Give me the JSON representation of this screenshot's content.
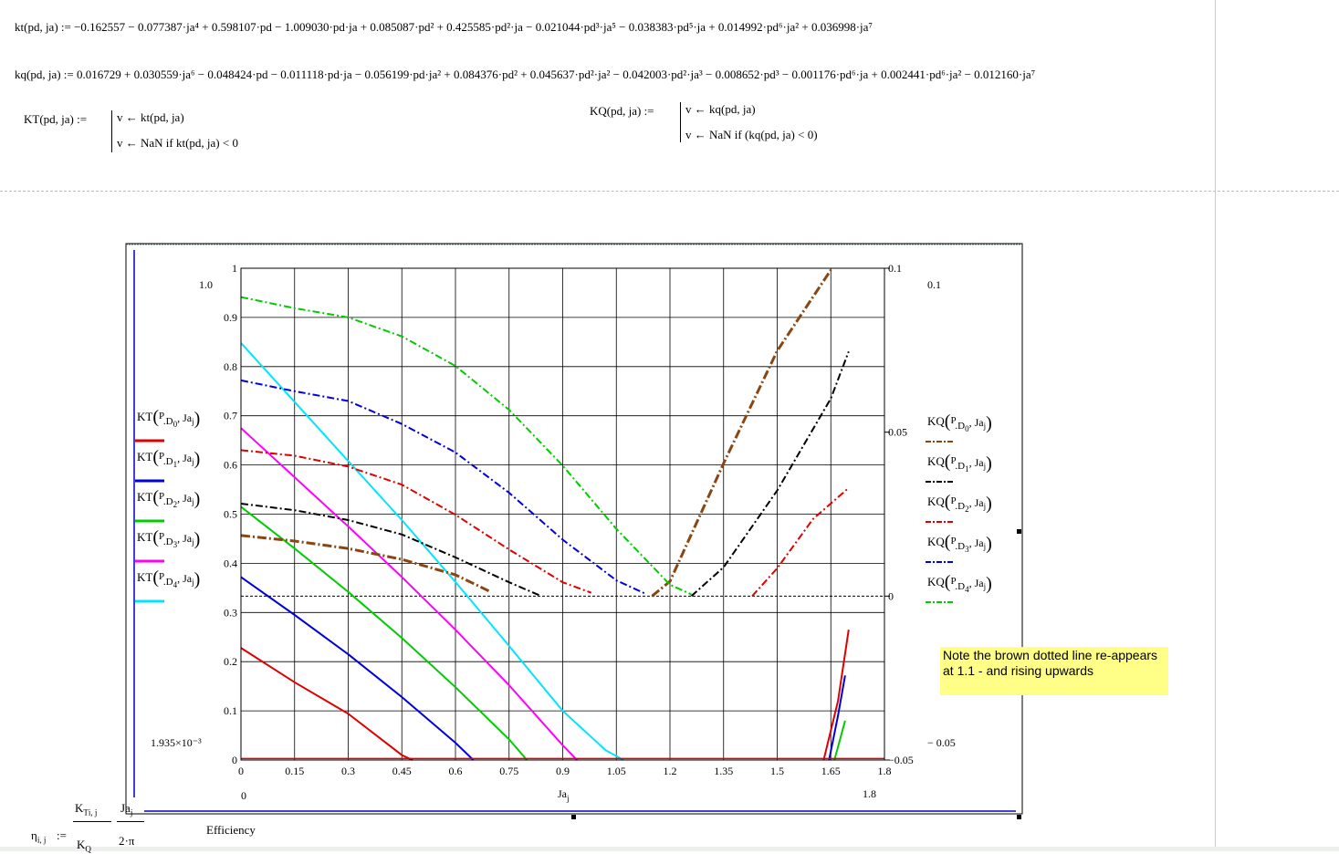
{
  "equations": {
    "kt": "kt(pd, ja) := −0.162557 − 0.077387·ja⁴ + 0.598107·pd − 1.009030·pd·ja + 0.085087·pd² + 0.425585·pd²·ja − 0.021044·pd³·ja⁵ − 0.038383·pd⁵·ja + 0.014992·pd⁶·ja² + 0.036998·ja⁷",
    "kq": "kq(pd, ja) := 0.016729 + 0.030559·ja⁶ − 0.048424·pd − 0.011118·pd·ja − 0.056199·pd·ja² + 0.084376·pd² + 0.045637·pd²·ja² − 0.042003·pd²·ja³ − 0.008652·pd³ − 0.001176·pd⁶·ja + 0.002441·pd⁶·ja² − 0.012160·ja⁷"
  },
  "programs": {
    "KT": {
      "name": "KT(pd, ja) :=",
      "line1": "v ← kt(pd, ja)",
      "line2": "v ← NaN  if  kt(pd, ja) < 0"
    },
    "KQ": {
      "name": "KQ(pd, ja) :=",
      "line1": "v ← kq(pd, ja)",
      "line2": "v ← NaN  if  (kq(pd, ja) < 0)"
    }
  },
  "note": "Note the brown dotted line re-appears at 1.1 - and rising upwards",
  "efficiency": {
    "lhs": "η",
    "lhs_sub": "i, j",
    "assign": ":=",
    "num1": "K",
    "num1_sub": "T",
    "num1_sub2": "i, j",
    "den1": "K",
    "den1_sub": "Q",
    "num2": "Ja",
    "num2_sub": "j",
    "den2": "2·π",
    "label": "Efficiency"
  },
  "chart_data": {
    "type": "line",
    "x_label": "Ja",
    "x_label_sub": "j",
    "x_ticks": [
      "0",
      "0.15",
      "0.3",
      "0.45",
      "0.6",
      "0.75",
      "0.9",
      "1.05",
      "1.2",
      "1.35",
      "1.5",
      "1.65",
      "1.8"
    ],
    "xlim": [
      0,
      1.8
    ],
    "x_range_labels": {
      "min": "0",
      "max": "1.8"
    },
    "y_left_ticks": [
      "0",
      "0.1",
      "0.2",
      "0.3",
      "0.4",
      "0.5",
      "0.6",
      "0.7",
      "0.8",
      "0.9",
      "1"
    ],
    "ylim_left": [
      0,
      1
    ],
    "y_left_range_labels": {
      "max": "1.0",
      "min": "1.935×10⁻³"
    },
    "y_right_ticks": [
      "−0.05",
      "0",
      "0.05",
      "0.1"
    ],
    "ylim_right": [
      -0.05,
      0.1
    ],
    "y_right_range_labels": {
      "max": "0.1",
      "mid": "0.05",
      "min": "− 0.05"
    },
    "grid": true,
    "left_legend": [
      {
        "text": "KT(P.D0, Jaj)",
        "func": "KT",
        "sub": "0",
        "color": "#e00000",
        "style": "solid"
      },
      {
        "text": "KT(P.D1, Jaj)",
        "func": "KT",
        "sub": "1",
        "color": "#0000dd",
        "style": "solid"
      },
      {
        "text": "KT(P.D2, Jaj)",
        "func": "KT",
        "sub": "2",
        "color": "#00cc00",
        "style": "solid"
      },
      {
        "text": "KT(P.D3, Jaj)",
        "func": "KT",
        "sub": "3",
        "color": "#ff00ff",
        "style": "solid"
      },
      {
        "text": "KT(P.D4, Jaj)",
        "func": "KT",
        "sub": "4",
        "color": "#00e5ff",
        "style": "solid"
      }
    ],
    "right_legend": [
      {
        "text": "KQ(P.D0, Jaj)",
        "func": "KQ",
        "sub": "0",
        "color": "#8b4513",
        "style": "dashdot"
      },
      {
        "text": "KQ(P.D1, Jaj)",
        "func": "KQ",
        "sub": "1",
        "color": "#000000",
        "style": "dashdot"
      },
      {
        "text": "KQ(P.D2, Jaj)",
        "func": "KQ",
        "sub": "2",
        "color": "#e00000",
        "style": "dashdot"
      },
      {
        "text": "KQ(P.D3, Jaj)",
        "func": "KQ",
        "sub": "3",
        "color": "#0000dd",
        "style": "dashdot"
      },
      {
        "text": "KQ(P.D4, Jaj)",
        "func": "KQ",
        "sub": "4",
        "color": "#00cc00",
        "style": "dashdot"
      }
    ],
    "series_left": [
      {
        "color": "#e00000",
        "width": 2,
        "segments": [
          [
            [
              0,
              0.228
            ],
            [
              0.15,
              0.158
            ],
            [
              0.3,
              0.094
            ],
            [
              0.45,
              0.01
            ],
            [
              0.48,
              0
            ]
          ],
          [
            [
              1.63,
              0
            ],
            [
              1.67,
              0.12
            ],
            [
              1.7,
              0.265
            ]
          ]
        ]
      },
      {
        "color": "#0000dd",
        "width": 2,
        "segments": [
          [
            [
              0,
              0.372
            ],
            [
              0.15,
              0.295
            ],
            [
              0.3,
              0.215
            ],
            [
              0.45,
              0.128
            ],
            [
              0.6,
              0.035
            ],
            [
              0.65,
              0
            ]
          ],
          [
            [
              1.645,
              0
            ],
            [
              1.67,
              0.09
            ],
            [
              1.69,
              0.172
            ]
          ]
        ]
      },
      {
        "color": "#00cc00",
        "width": 2,
        "segments": [
          [
            [
              0,
              0.515
            ],
            [
              0.15,
              0.43
            ],
            [
              0.3,
              0.342
            ],
            [
              0.45,
              0.248
            ],
            [
              0.6,
              0.148
            ],
            [
              0.75,
              0.042
            ],
            [
              0.8,
              0
            ]
          ],
          [
            [
              1.66,
              0
            ],
            [
              1.69,
              0.08
            ]
          ]
        ]
      },
      {
        "color": "#ff00ff",
        "width": 2,
        "segments": [
          [
            [
              0,
              0.675
            ],
            [
              0.15,
              0.575
            ],
            [
              0.3,
              0.475
            ],
            [
              0.45,
              0.372
            ],
            [
              0.6,
              0.265
            ],
            [
              0.75,
              0.152
            ],
            [
              0.9,
              0.03
            ],
            [
              0.94,
              0
            ]
          ]
        ]
      },
      {
        "color": "#00e5ff",
        "width": 2,
        "segments": [
          [
            [
              0,
              0.848
            ],
            [
              0.15,
              0.728
            ],
            [
              0.3,
              0.608
            ],
            [
              0.45,
              0.488
            ],
            [
              0.6,
              0.362
            ],
            [
              0.75,
              0.232
            ],
            [
              0.9,
              0.1
            ],
            [
              1.02,
              0.02
            ],
            [
              1.07,
              0
            ]
          ]
        ]
      },
      {
        "color": "#e00000",
        "width": 1.5,
        "segments": [
          [
            [
              0,
              0.003
            ],
            [
              1.8,
              0.003
            ]
          ]
        ]
      }
    ],
    "series_right": [
      {
        "color": "#8b4513",
        "width": 3,
        "dash": "10,3,2,3",
        "segments": [
          [
            [
              0,
              0.0185
            ],
            [
              0.15,
              0.0168
            ],
            [
              0.3,
              0.0145
            ],
            [
              0.45,
              0.0112
            ],
            [
              0.6,
              0.0065
            ],
            [
              0.7,
              0.0012
            ]
          ],
          [
            [
              1.15,
              0
            ],
            [
              1.2,
              0.0045
            ],
            [
              1.35,
              0.0405
            ],
            [
              1.5,
              0.0748
            ],
            [
              1.65,
              0.0995
            ]
          ]
        ]
      },
      {
        "color": "#000000",
        "width": 2,
        "dash": "8,3,2,3",
        "segments": [
          [
            [
              0,
              0.0282
            ],
            [
              0.15,
              0.0262
            ],
            [
              0.3,
              0.0232
            ],
            [
              0.45,
              0.0188
            ],
            [
              0.6,
              0.0118
            ],
            [
              0.75,
              0.0042
            ],
            [
              0.84,
              0
            ]
          ],
          [
            [
              1.26,
              0
            ],
            [
              1.35,
              0.0088
            ],
            [
              1.5,
              0.0322
            ],
            [
              1.65,
              0.0603
            ],
            [
              1.7,
              0.0746
            ]
          ]
        ]
      },
      {
        "color": "#e00000",
        "width": 2,
        "dash": "8,3,2,3",
        "segments": [
          [
            [
              0,
              0.0445
            ],
            [
              0.15,
              0.0428
            ],
            [
              0.3,
              0.0395
            ],
            [
              0.45,
              0.034
            ],
            [
              0.6,
              0.0248
            ],
            [
              0.75,
              0.0142
            ],
            [
              0.9,
              0.0042
            ],
            [
              0.98,
              0.001
            ]
          ],
          [
            [
              1.43,
              0
            ],
            [
              1.5,
              0.0085
            ],
            [
              1.6,
              0.0235
            ],
            [
              1.7,
              0.033
            ]
          ]
        ]
      },
      {
        "color": "#0000dd",
        "width": 2,
        "dash": "8,3,2,3",
        "segments": [
          [
            [
              0,
              0.0658
            ],
            [
              0.15,
              0.0625
            ],
            [
              0.3,
              0.0595
            ],
            [
              0.45,
              0.0525
            ],
            [
              0.6,
              0.0438
            ],
            [
              0.75,
              0.0315
            ],
            [
              0.9,
              0.0172
            ],
            [
              1.05,
              0.0048
            ],
            [
              1.13,
              0.0008
            ]
          ]
        ]
      },
      {
        "color": "#00cc00",
        "width": 2,
        "dash": "8,3,2,3",
        "segments": [
          [
            [
              0,
              0.0912
            ],
            [
              0.15,
              0.0878
            ],
            [
              0.3,
              0.085
            ],
            [
              0.45,
              0.0792
            ],
            [
              0.6,
              0.0702
            ],
            [
              0.75,
              0.0568
            ],
            [
              0.9,
              0.0398
            ],
            [
              1.05,
              0.0205
            ],
            [
              1.2,
              0.0035
            ],
            [
              1.26,
              0.0005
            ]
          ]
        ]
      }
    ]
  }
}
